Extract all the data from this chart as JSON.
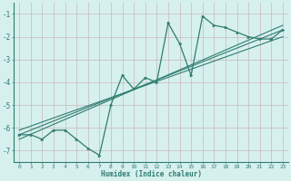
{
  "xlabel": "Humidex (Indice chaleur)",
  "bg_color": "#d6f0ee",
  "line_color": "#2e7d70",
  "grid_color": "#c8b8b8",
  "xlim": [
    -0.5,
    23.5
  ],
  "ylim": [
    -7.5,
    -0.5
  ],
  "yticks": [
    -7,
    -6,
    -5,
    -4,
    -3,
    -2,
    -1
  ],
  "xticks": [
    0,
    1,
    2,
    3,
    4,
    5,
    6,
    7,
    8,
    9,
    10,
    11,
    12,
    13,
    14,
    15,
    16,
    17,
    18,
    19,
    20,
    21,
    22,
    23
  ],
  "data_x": [
    0,
    1,
    2,
    3,
    4,
    5,
    6,
    7,
    8,
    9,
    10,
    11,
    12,
    13,
    14,
    15,
    16,
    17,
    18,
    19,
    20,
    21,
    22,
    23
  ],
  "data_y": [
    -6.3,
    -6.3,
    -6.5,
    -6.1,
    -6.1,
    -6.5,
    -6.9,
    -7.2,
    -5.0,
    -3.7,
    -4.3,
    -3.8,
    -4.0,
    -1.4,
    -2.3,
    -3.7,
    -1.1,
    -1.5,
    -1.6,
    -1.8,
    -2.0,
    -2.1,
    -2.1,
    -1.7
  ],
  "trend1_x": [
    0,
    23
  ],
  "trend1_y": [
    -6.3,
    -1.7
  ],
  "trend2_x": [
    0,
    23
  ],
  "trend2_y": [
    -6.5,
    -1.5
  ],
  "trend3_x": [
    0,
    23
  ],
  "trend3_y": [
    -6.1,
    -2.0
  ]
}
